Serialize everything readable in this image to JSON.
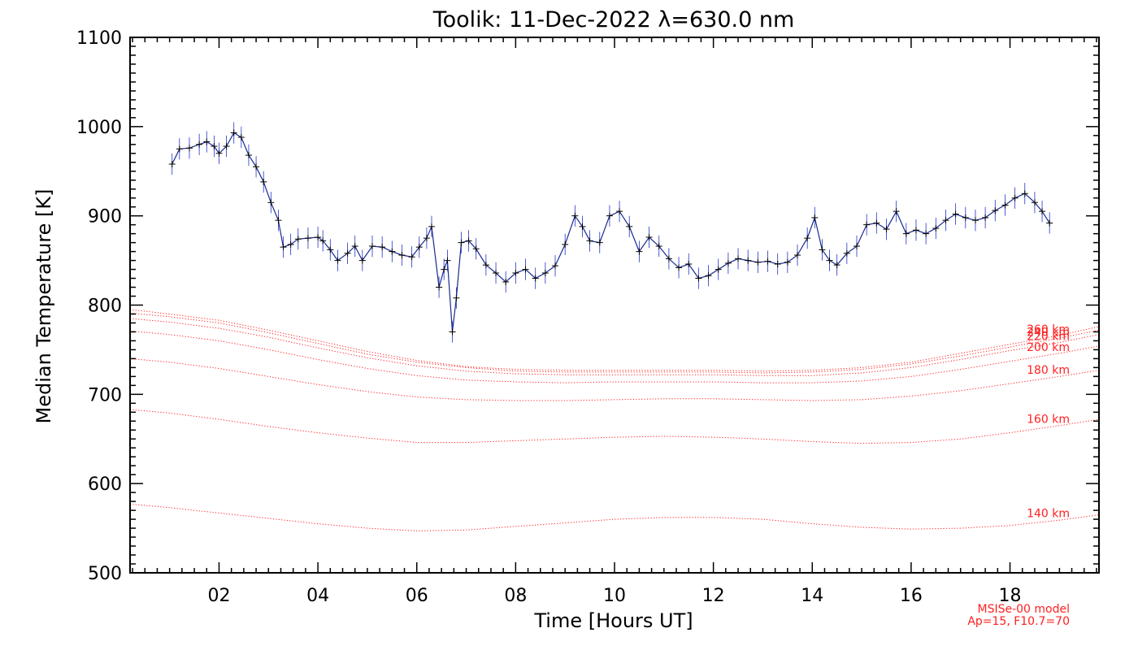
{
  "chart_data": {
    "type": "line",
    "title": "Toolik: 11-Dec-2022 λ=630.0 nm",
    "xlabel": "Time [Hours UT]",
    "ylabel": "Median Temperature [K]",
    "xlim": [
      0.2,
      19.8
    ],
    "ylim": [
      500,
      1100
    ],
    "x_ticks": [
      2,
      4,
      6,
      8,
      10,
      12,
      14,
      16,
      18
    ],
    "x_tick_labels": [
      "02",
      "04",
      "06",
      "08",
      "10",
      "12",
      "14",
      "16",
      "18"
    ],
    "y_ticks": [
      500,
      600,
      700,
      800,
      900,
      1000,
      1100
    ],
    "y_tick_labels": [
      "500",
      "600",
      "700",
      "800",
      "900",
      "1000",
      "1100"
    ],
    "grid": false,
    "series": [
      {
        "style": "solid-with-plus-markers-and-error-bars",
        "color": "#1a2a8c",
        "x": [
          1.05,
          1.2,
          1.4,
          1.6,
          1.75,
          1.9,
          2.0,
          2.15,
          2.3,
          2.45,
          2.6,
          2.75,
          2.9,
          3.05,
          3.2,
          3.3,
          3.45,
          3.6,
          3.8,
          4.0,
          4.1,
          4.25,
          4.4,
          4.6,
          4.75,
          4.9,
          5.1,
          5.3,
          5.5,
          5.7,
          5.9,
          6.05,
          6.2,
          6.3,
          6.45,
          6.55,
          6.62,
          6.72,
          6.8,
          6.9,
          7.05,
          7.2,
          7.4,
          7.6,
          7.8,
          8.0,
          8.2,
          8.4,
          8.6,
          8.8,
          9.0,
          9.2,
          9.35,
          9.5,
          9.7,
          9.9,
          10.1,
          10.3,
          10.5,
          10.7,
          10.9,
          11.1,
          11.3,
          11.5,
          11.7,
          11.9,
          12.1,
          12.3,
          12.5,
          12.7,
          12.9,
          13.1,
          13.3,
          13.5,
          13.7,
          13.9,
          14.05,
          14.2,
          14.35,
          14.5,
          14.7,
          14.9,
          15.1,
          15.3,
          15.5,
          15.7,
          15.9,
          16.1,
          16.3,
          16.5,
          16.7,
          16.9,
          17.1,
          17.3,
          17.5,
          17.7,
          17.9,
          18.1,
          18.3,
          18.5,
          18.65,
          18.8
        ],
        "y": [
          958,
          975,
          976,
          980,
          983,
          978,
          970,
          978,
          993,
          988,
          968,
          955,
          938,
          915,
          895,
          865,
          868,
          874,
          875,
          876,
          872,
          862,
          850,
          858,
          866,
          850,
          866,
          865,
          860,
          856,
          854,
          865,
          875,
          888,
          820,
          840,
          850,
          770,
          808,
          870,
          872,
          863,
          845,
          836,
          826,
          836,
          840,
          830,
          836,
          844,
          868,
          900,
          888,
          872,
          870,
          900,
          905,
          888,
          860,
          876,
          866,
          852,
          842,
          846,
          830,
          833,
          840,
          847,
          852,
          850,
          848,
          849,
          846,
          848,
          856,
          875,
          898,
          862,
          850,
          845,
          858,
          866,
          890,
          892,
          885,
          905,
          880,
          884,
          880,
          886,
          895,
          902,
          898,
          895,
          898,
          906,
          912,
          920,
          925,
          915,
          905,
          892
        ],
        "error_bar": 12
      }
    ],
    "model_curves": [
      {
        "label": "140 km",
        "style": "dotted",
        "color": "#ff2020",
        "x": [
          0.2,
          1.0,
          2.0,
          3.0,
          4.0,
          5.0,
          6.0,
          7.0,
          8.0,
          9.0,
          10.0,
          11.0,
          12.0,
          13.0,
          14.0,
          15.0,
          16.0,
          17.0,
          18.0,
          19.0,
          19.8
        ],
        "y": [
          577,
          573,
          567,
          561,
          555,
          550,
          547,
          548,
          552,
          556,
          560,
          562,
          562,
          560,
          555,
          551,
          549,
          550,
          553,
          559,
          565
        ]
      },
      {
        "label": "160 km",
        "style": "dotted",
        "color": "#ff2020",
        "x": [
          0.2,
          1.0,
          2.0,
          3.0,
          4.0,
          5.0,
          6.0,
          7.0,
          8.0,
          9.0,
          10.0,
          11.0,
          12.0,
          13.0,
          14.0,
          15.0,
          16.0,
          17.0,
          18.0,
          19.0,
          19.8
        ],
        "y": [
          683,
          679,
          672,
          664,
          657,
          651,
          646,
          646,
          648,
          650,
          652,
          653,
          652,
          650,
          647,
          645,
          646,
          650,
          657,
          665,
          672
        ]
      },
      {
        "label": "180 km",
        "style": "dotted",
        "color": "#ff2020",
        "x": [
          0.2,
          1.0,
          2.0,
          3.0,
          4.0,
          5.0,
          6.0,
          7.0,
          8.0,
          9.0,
          10.0,
          11.0,
          12.0,
          13.0,
          14.0,
          15.0,
          16.0,
          17.0,
          18.0,
          19.0,
          19.8
        ],
        "y": [
          740,
          736,
          729,
          720,
          711,
          703,
          697,
          694,
          693,
          693,
          694,
          695,
          695,
          694,
          693,
          694,
          698,
          704,
          712,
          720,
          727
        ]
      },
      {
        "label": "200 km",
        "style": "dotted",
        "color": "#ff2020",
        "x": [
          0.2,
          1.0,
          2.0,
          3.0,
          4.0,
          5.0,
          6.0,
          7.0,
          8.0,
          9.0,
          10.0,
          11.0,
          12.0,
          13.0,
          14.0,
          15.0,
          16.0,
          17.0,
          18.0,
          19.0,
          19.8
        ],
        "y": [
          771,
          767,
          760,
          750,
          739,
          729,
          721,
          716,
          714,
          713,
          714,
          714,
          714,
          713,
          713,
          715,
          720,
          728,
          737,
          746,
          754
        ]
      },
      {
        "label": "220 km",
        "style": "dotted",
        "color": "#ff2020",
        "x": [
          0.2,
          1.0,
          2.0,
          3.0,
          4.0,
          5.0,
          6.0,
          7.0,
          8.0,
          9.0,
          10.0,
          11.0,
          12.0,
          13.0,
          14.0,
          15.0,
          16.0,
          17.0,
          18.0,
          19.0,
          19.8
        ],
        "y": [
          785,
          781,
          774,
          764,
          752,
          741,
          732,
          726,
          723,
          722,
          722,
          722,
          722,
          721,
          721,
          724,
          730,
          739,
          749,
          758,
          767
        ]
      },
      {
        "label": "240 km",
        "style": "dotted",
        "color": "#ff2020",
        "x": [
          0.2,
          1.0,
          2.0,
          3.0,
          4.0,
          5.0,
          6.0,
          7.0,
          8.0,
          9.0,
          10.0,
          11.0,
          12.0,
          13.0,
          14.0,
          15.0,
          16.0,
          17.0,
          18.0,
          19.0,
          19.8
        ],
        "y": [
          791,
          787,
          780,
          769,
          757,
          745,
          736,
          730,
          726,
          725,
          725,
          725,
          725,
          724,
          725,
          728,
          734,
          743,
          753,
          763,
          772
        ]
      },
      {
        "label": "260 km",
        "style": "dotted",
        "color": "#ff2020",
        "x": [
          0.2,
          1.0,
          2.0,
          3.0,
          4.0,
          5.0,
          6.0,
          7.0,
          8.0,
          9.0,
          10.0,
          11.0,
          12.0,
          13.0,
          14.0,
          15.0,
          16.0,
          17.0,
          18.0,
          19.0,
          19.8
        ],
        "y": [
          795,
          790,
          783,
          772,
          760,
          748,
          738,
          731,
          728,
          727,
          727,
          727,
          727,
          726,
          727,
          730,
          736,
          746,
          756,
          766,
          776
        ]
      }
    ],
    "annotations": [
      "MSISe-00 model",
      "Ap=15, F10.7=70"
    ]
  }
}
